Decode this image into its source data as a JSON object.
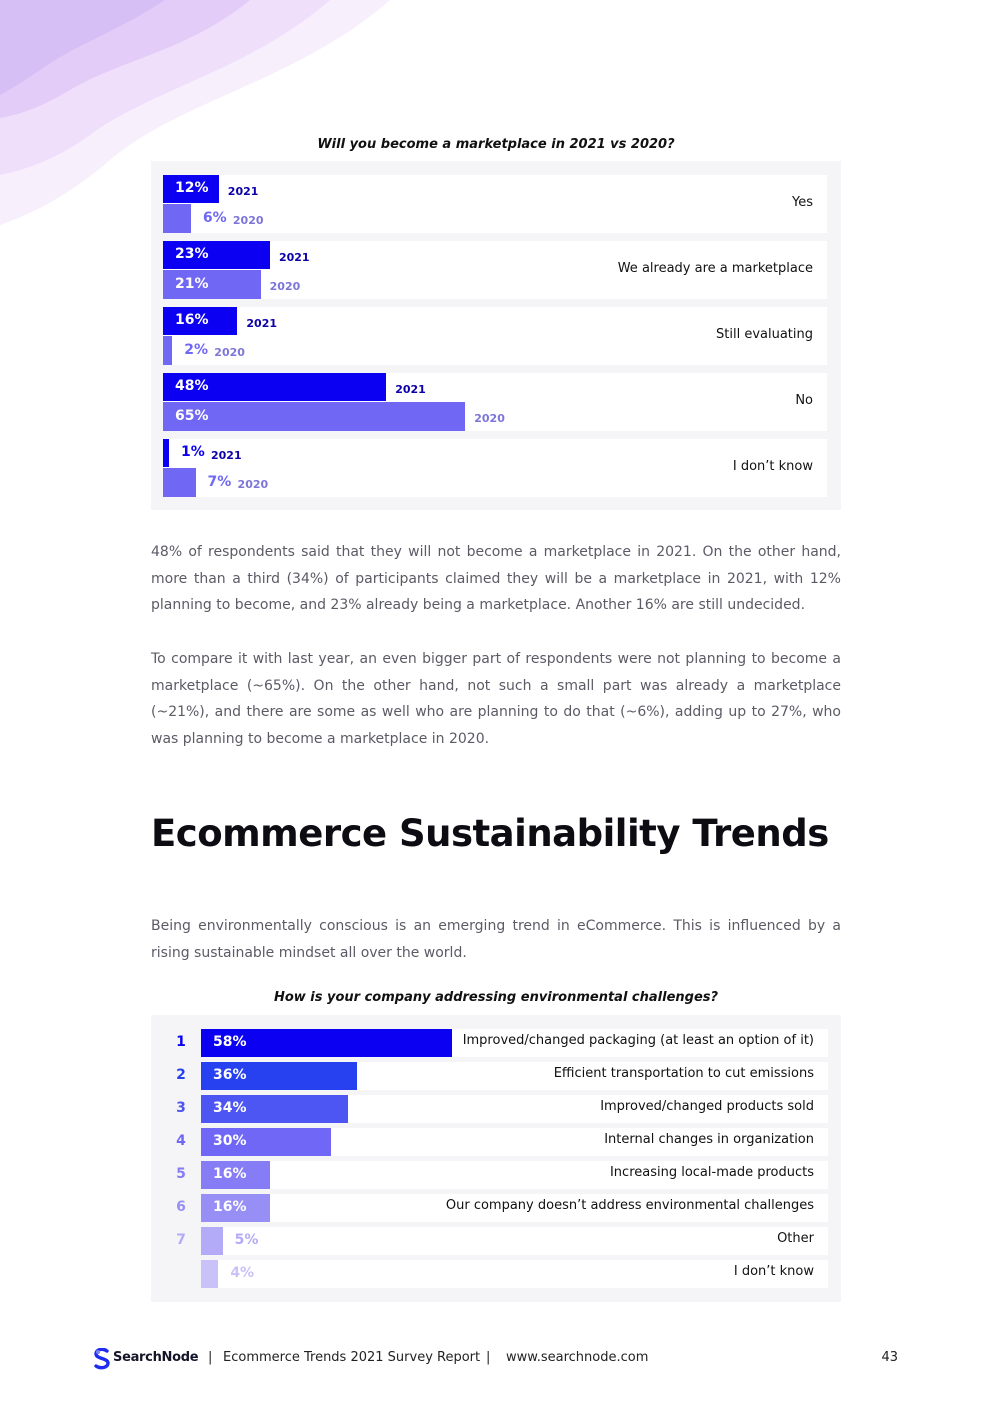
{
  "chart1": {
    "title": "Will you become a marketplace in 2021 vs 2020?",
    "chart_data": {
      "type": "bar",
      "title": "Will you become a marketplace in 2021 vs 2020?",
      "categories": [
        "Yes",
        "We already are a marketplace",
        "Still evaluating",
        "No",
        "I don’t know"
      ],
      "series": [
        {
          "name": "2021",
          "values": [
            12,
            23,
            16,
            48,
            1
          ],
          "color": "#0c00f2"
        },
        {
          "name": "2020",
          "values": [
            6,
            21,
            2,
            65,
            7
          ],
          "color": "#7068f4"
        }
      ],
      "unit": "%",
      "orientation": "horizontal"
    }
  },
  "para1": "48% of respondents said that they will not become a marketplace in 2021. On the other hand, more than a third  (34%) of participants claimed they will be a marketplace in 2021, with 12% planning to become, and 23% already being a marketplace. Another 16% are still undecided.",
  "para2": "To compare it with last year, an even bigger part of respondents were not planning to become a marketplace (~65%). On the other hand, not such a small part was already a marketplace (~21%), and there are some as well who are planning to do that (~6%), adding up to 27%, who was planning to become a marketplace in 2020.",
  "heading": "Ecommerce Sustainability Trends",
  "para3": "Being environmentally conscious is an emerging trend in eCommerce. This is influenced by a rising sustainable mindset all over the world.",
  "chart2": {
    "title": "How is your company addressing environmental challenges?",
    "chart_data": {
      "type": "bar",
      "title": "How is your company addressing environmental challenges?",
      "orientation": "horizontal",
      "unit": "%",
      "ranks": [
        "1",
        "2",
        "3",
        "4",
        "5",
        "6",
        "7",
        ""
      ],
      "categories": [
        "Improved/changed packaging (at least an option of it)",
        "Efficient transportation to cut emissions",
        "Improved/changed products sold",
        "Internal changes in organization",
        "Increasing local-made products",
        "Our company doesn’t address environmental challenges",
        "Other",
        "I don’t know"
      ],
      "values": [
        58,
        36,
        34,
        30,
        16,
        16,
        5,
        4
      ],
      "colors": [
        "#0c00f2",
        "#2741f0",
        "#4d55f2",
        "#7067f6",
        "#867cf6",
        "#978ef6",
        "#b3abf7",
        "#c9c2f8"
      ]
    }
  },
  "footer": {
    "logo": "SearchNode",
    "sep": "|",
    "report": "Ecommerce Trends 2021 Survey Report",
    "url": "www.searchnode.com",
    "page": "43"
  }
}
